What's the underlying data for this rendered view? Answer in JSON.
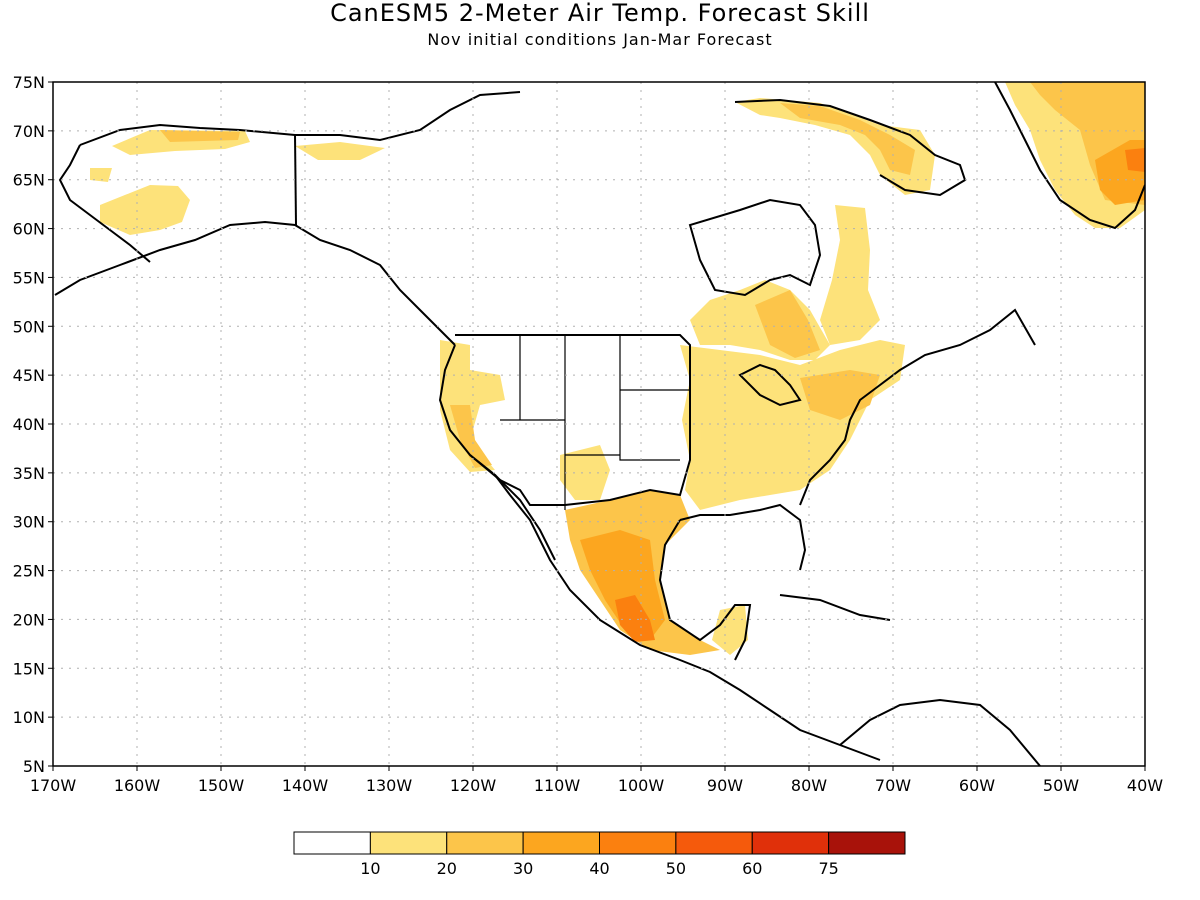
{
  "title": "CanESM5 2-Meter Air Temp. Forecast Skill",
  "subtitle": "Nov initial conditions  Jan-Mar Forecast",
  "lat_labels": [
    "75N",
    "70N",
    "65N",
    "60N",
    "55N",
    "50N",
    "45N",
    "40N",
    "35N",
    "30N",
    "25N",
    "20N",
    "15N",
    "10N",
    "5N"
  ],
  "lon_labels": [
    "170W",
    "160W",
    "150W",
    "140W",
    "130W",
    "120W",
    "110W",
    "100W",
    "90W",
    "80W",
    "70W",
    "60W",
    "50W",
    "40W"
  ],
  "map_extent": {
    "lon": [
      -170,
      -40
    ],
    "lat": [
      5,
      75
    ]
  },
  "colorbar": {
    "labels": [
      "10",
      "20",
      "30",
      "40",
      "50",
      "60",
      "75"
    ],
    "colors": [
      "#ffffff",
      "#fde27a",
      "#fcc54a",
      "#fca61f",
      "#fb800f",
      "#f55a0c",
      "#e0300a",
      "#a8120a"
    ]
  },
  "colors": {
    "coast": "#000000",
    "grid": "#b0b0b0"
  }
}
